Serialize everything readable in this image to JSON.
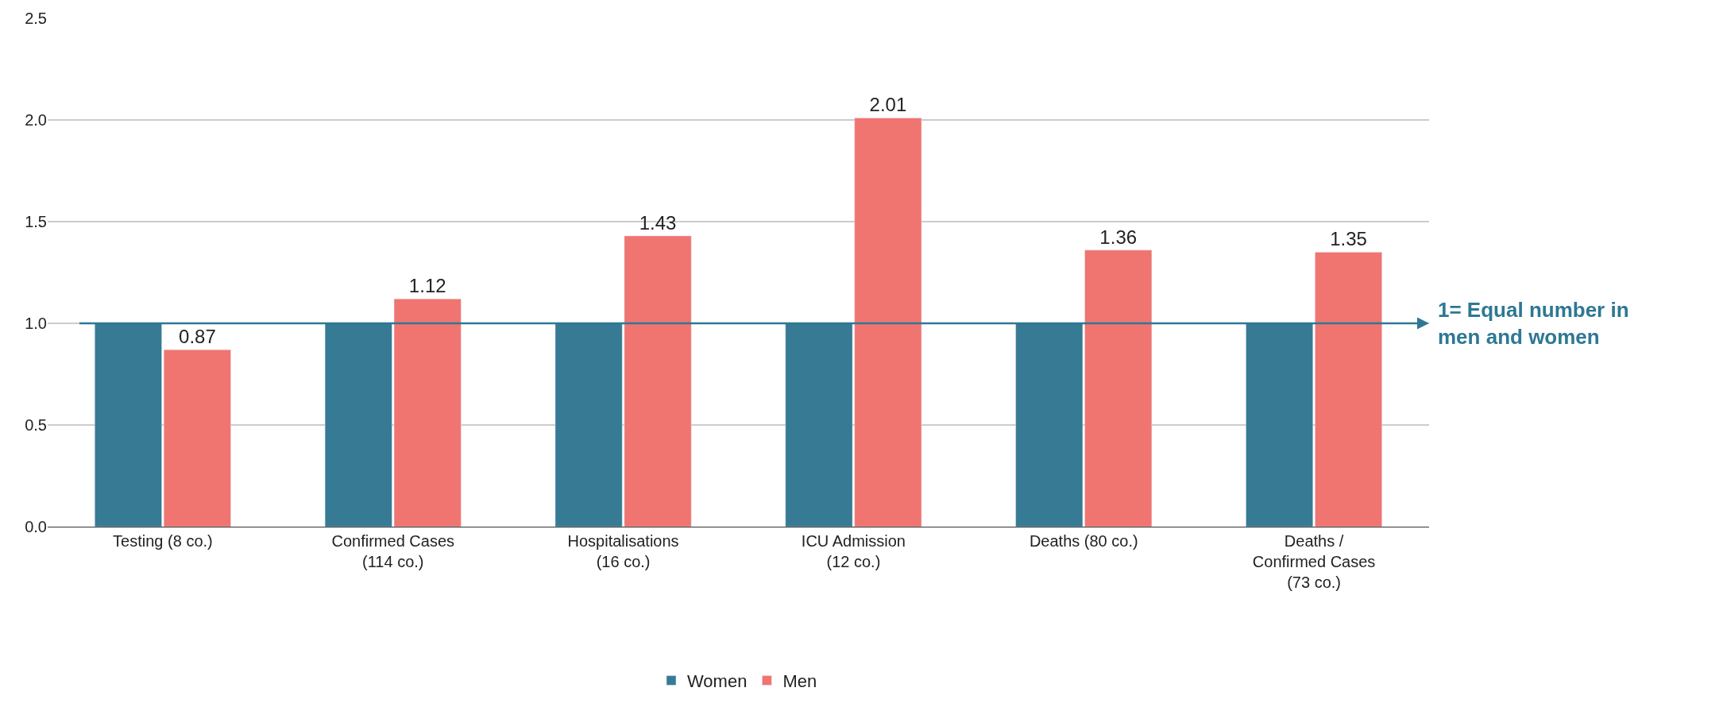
{
  "chart_data": {
    "type": "bar",
    "categories": [
      "Testing (8 co.)",
      "Confirmed Cases\n(114 co.)",
      "Hospitalisations\n(16 co.)",
      "ICU Admission\n(12 co.)",
      "Deaths (80 co.)",
      "Deaths /\nConfirmed Cases\n(73 co.)"
    ],
    "series": [
      {
        "name": "Women",
        "color": "#367a94",
        "values": [
          1.0,
          1.0,
          1.0,
          1.0,
          1.0,
          1.0
        ]
      },
      {
        "name": "Men",
        "color": "#f07470",
        "values": [
          0.87,
          1.12,
          1.43,
          2.01,
          1.36,
          1.35
        ],
        "value_labels": [
          "0.87",
          "1.12",
          "1.43",
          "2.01",
          "1.36",
          "1.35"
        ]
      }
    ],
    "ylim": [
      0,
      2.5
    ],
    "yticks": [
      {
        "value": 0,
        "label": "0.0"
      },
      {
        "value": 0.5,
        "label": "0.5"
      },
      {
        "value": 1,
        "label": "1.0"
      },
      {
        "value": 1.5,
        "label": "1.5"
      },
      {
        "value": 2,
        "label": "2.0"
      },
      {
        "value": 2.5,
        "label": "2.5"
      }
    ],
    "ref_lines": [
      {
        "axis": "y",
        "value": 1,
        "label": "1= Equal number in\nmen and women",
        "color": "#2e7893"
      }
    ],
    "grid": "y",
    "legend": "bottom"
  }
}
